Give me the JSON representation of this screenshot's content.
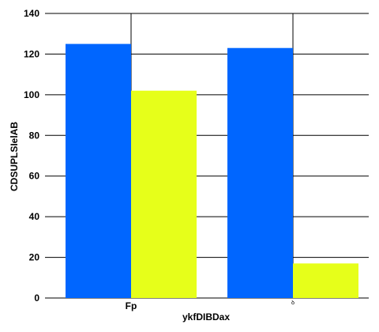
{
  "chart_data": {
    "type": "bar",
    "title": "",
    "xlabel": "ykfDIBDax",
    "ylabel": "CDSUPLSIelAB",
    "ylim": [
      0,
      140
    ],
    "yticks": [
      0,
      20,
      40,
      60,
      80,
      100,
      120,
      140
    ],
    "categories": [
      "Fp",
      "ꝺ"
    ],
    "series": [
      {
        "values": [
          125,
          123
        ],
        "color": "#0066ff"
      },
      {
        "values": [
          102,
          17
        ],
        "color": "#e6ff1a"
      }
    ],
    "grid": true,
    "legend": "none"
  }
}
